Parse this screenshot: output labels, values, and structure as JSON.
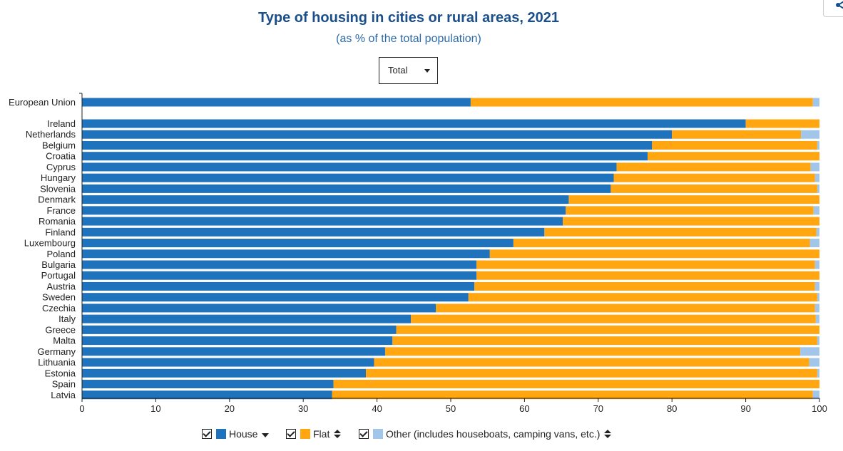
{
  "header": {
    "title": "Type of housing in cities or rural areas, 2021",
    "subtitle": "(as % of the total population)"
  },
  "filter": {
    "selected": "Total"
  },
  "legend": {
    "house_label": "House",
    "flat_label": "Flat",
    "other_label": "Other (includes houseboats, camping vans, etc.)"
  },
  "colors": {
    "house": "#1f73bd",
    "flat": "#ffa611",
    "other": "#a2c6ea"
  },
  "chart_data": {
    "type": "bar",
    "orientation": "horizontal",
    "stacked": true,
    "title": "Type of housing in cities or rural areas, 2021",
    "subtitle": "(as % of the total population)",
    "xlim": [
      0,
      100
    ],
    "xticks": [
      "0",
      "10",
      "20",
      "30",
      "40",
      "50",
      "60",
      "70",
      "80",
      "90",
      "100"
    ],
    "categories": [
      "European Union",
      "Ireland",
      "Netherlands",
      "Belgium",
      "Croatia",
      "Cyprus",
      "Hungary",
      "Slovenia",
      "Denmark",
      "France",
      "Romania",
      "Finland",
      "Luxembourg",
      "Poland",
      "Bulgaria",
      "Portugal",
      "Austria",
      "Sweden",
      "Czechia",
      "Italy",
      "Greece",
      "Malta",
      "Germany",
      "Lithuania",
      "Estonia",
      "Spain",
      "Latvia"
    ],
    "series": [
      {
        "name": "House",
        "values": [
          52.7,
          90.0,
          80.0,
          77.3,
          76.7,
          72.5,
          72.1,
          71.7,
          66.0,
          65.6,
          65.2,
          62.7,
          58.5,
          55.3,
          53.5,
          53.5,
          53.2,
          52.4,
          48.0,
          44.6,
          42.6,
          42.1,
          41.1,
          39.6,
          38.5,
          34.1,
          33.9
        ]
      },
      {
        "name": "Flat",
        "values": [
          46.4,
          10.0,
          17.5,
          22.4,
          23.3,
          26.3,
          27.3,
          28.0,
          34.0,
          33.6,
          34.8,
          36.9,
          40.2,
          44.7,
          45.9,
          46.5,
          46.2,
          47.3,
          51.4,
          54.9,
          57.4,
          57.6,
          56.3,
          59.0,
          61.2,
          65.9,
          65.2
        ]
      },
      {
        "name": "Other (includes houseboats, camping vans, etc.)",
        "values": [
          0.9,
          0.0,
          2.5,
          0.3,
          0.0,
          1.2,
          0.6,
          0.3,
          0.0,
          0.8,
          0.0,
          0.4,
          1.3,
          0.0,
          0.6,
          0.0,
          0.6,
          0.3,
          0.6,
          0.5,
          0.0,
          0.3,
          2.6,
          1.4,
          0.3,
          0.0,
          0.9
        ]
      }
    ]
  }
}
